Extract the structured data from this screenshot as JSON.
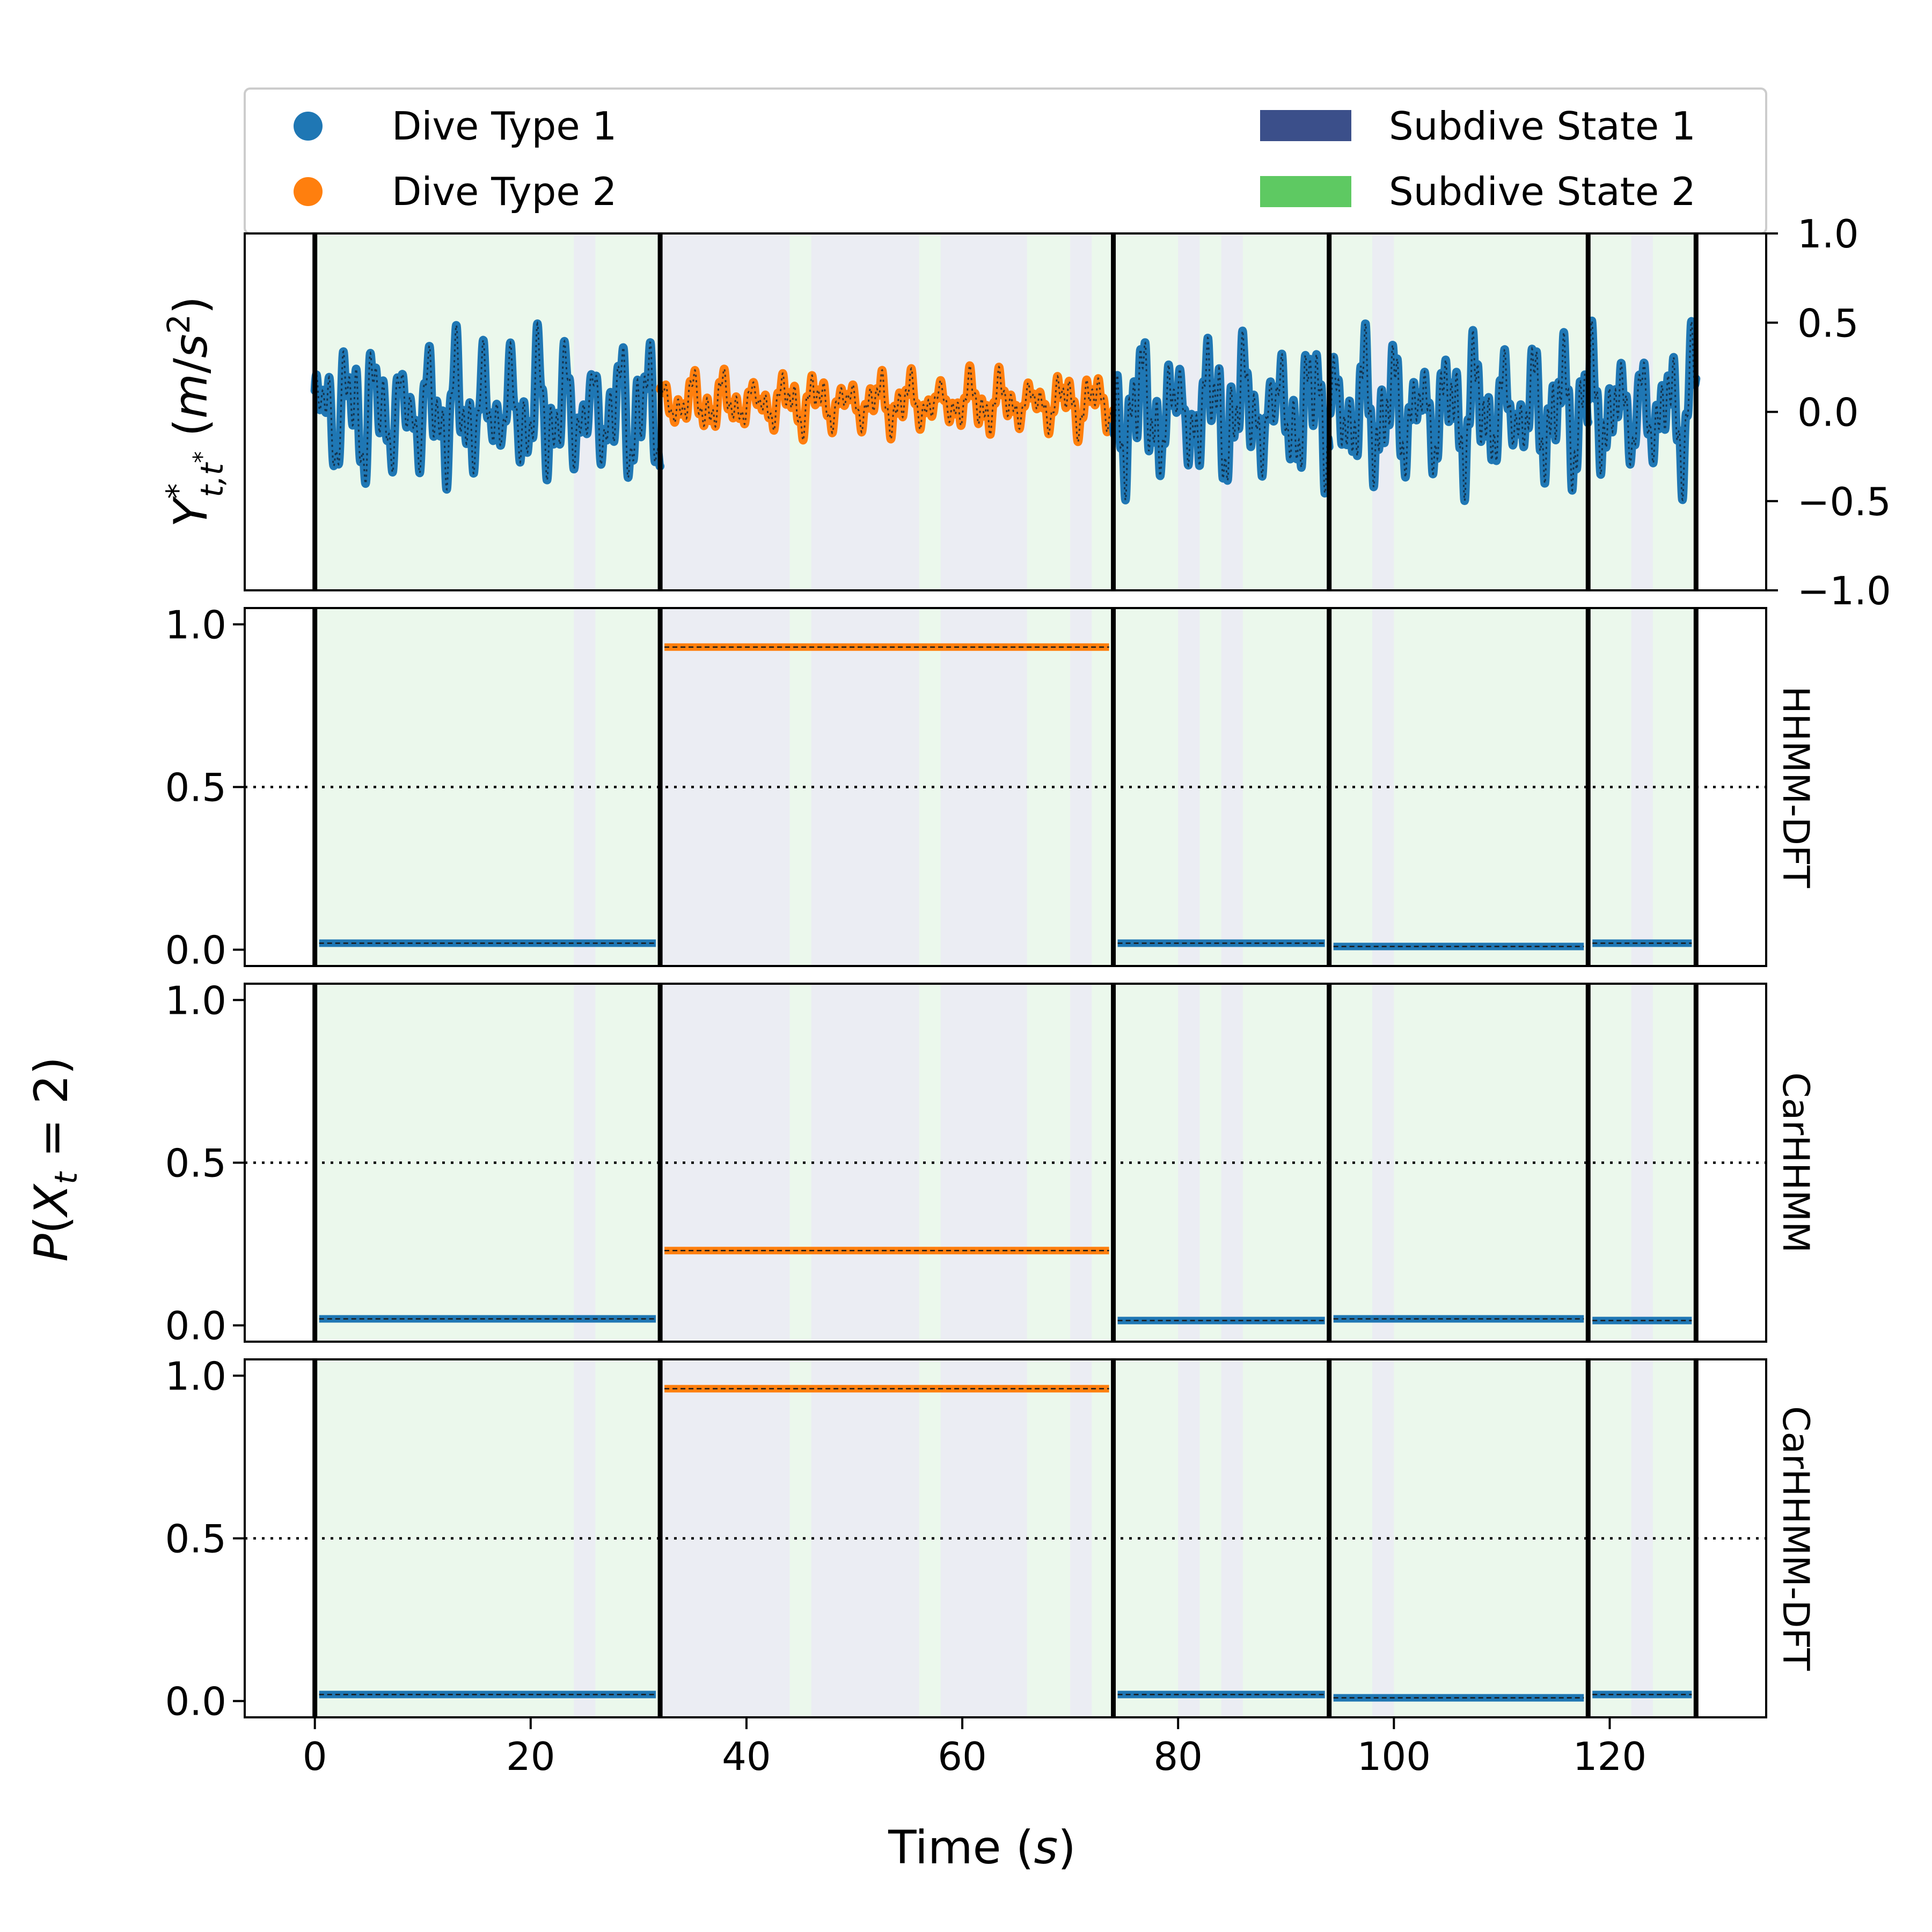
{
  "chart_data": {
    "type": "line",
    "legend": {
      "placement": "top",
      "entries": [
        {
          "label": "Dive Type 1",
          "color": "#1f77b4",
          "kind": "marker"
        },
        {
          "label": "Dive Type 2",
          "color": "#ff7f0e",
          "kind": "marker"
        },
        {
          "label": "Subdive State 1",
          "color": "#3b4f8a",
          "kind": "patch"
        },
        {
          "label": "Subdive State 2",
          "color": "#5ec962",
          "kind": "patch"
        }
      ]
    },
    "xlabel": "Time (s)",
    "xlim": [
      -6.5,
      134.5
    ],
    "xticks": [
      0,
      20,
      40,
      60,
      80,
      100,
      120
    ],
    "dive_boundaries": [
      0,
      32,
      74,
      94,
      118,
      128
    ],
    "dives": [
      {
        "start": 0,
        "end": 32,
        "type": 1
      },
      {
        "start": 32,
        "end": 74,
        "type": 2
      },
      {
        "start": 74,
        "end": 94,
        "type": 1
      },
      {
        "start": 94,
        "end": 118,
        "type": 1
      },
      {
        "start": 118,
        "end": 128,
        "type": 1
      }
    ],
    "subdive_segments": [
      {
        "start": 0,
        "end": 24,
        "state": 2
      },
      {
        "start": 24,
        "end": 26,
        "state": 1
      },
      {
        "start": 26,
        "end": 32,
        "state": 2
      },
      {
        "start": 32,
        "end": 44,
        "state": 1
      },
      {
        "start": 44,
        "end": 46,
        "state": 2
      },
      {
        "start": 46,
        "end": 56,
        "state": 1
      },
      {
        "start": 56,
        "end": 58,
        "state": 2
      },
      {
        "start": 58,
        "end": 66,
        "state": 1
      },
      {
        "start": 66,
        "end": 70,
        "state": 2
      },
      {
        "start": 70,
        "end": 72,
        "state": 1
      },
      {
        "start": 72,
        "end": 80,
        "state": 2
      },
      {
        "start": 80,
        "end": 82,
        "state": 1
      },
      {
        "start": 82,
        "end": 84,
        "state": 2
      },
      {
        "start": 84,
        "end": 86,
        "state": 1
      },
      {
        "start": 86,
        "end": 98,
        "state": 2
      },
      {
        "start": 98,
        "end": 100,
        "state": 1
      },
      {
        "start": 100,
        "end": 122,
        "state": 2
      },
      {
        "start": 122,
        "end": 124,
        "state": 1
      },
      {
        "start": 124,
        "end": 128,
        "state": 2
      }
    ],
    "panels": [
      {
        "id": "acceleration",
        "ylabel": "Y*_{t,t*} (m/s²)",
        "ylim": [
          -1.0,
          1.0
        ],
        "yticks": [
          1.0,
          0.5,
          0.0,
          -0.5,
          -1.0
        ],
        "ytick_labels": [
          "1.0",
          "0.5",
          "0.0",
          "−0.5",
          "−1.0"
        ],
        "yaxis_side": "right",
        "series": "acceleration_trace (approx., colored by dive type)"
      },
      {
        "id": "hhmm-dft",
        "side_label": "HHMM-DFT",
        "ylim": [
          -0.05,
          1.05
        ],
        "yticks": [
          0.0,
          0.5,
          1.0
        ],
        "ytick_labels": [
          "0.0",
          "0.5",
          "1.0"
        ],
        "reference_line": 0.5,
        "dive_probabilities": [
          0.02,
          0.93,
          0.02,
          0.01,
          0.02
        ]
      },
      {
        "id": "carhhmm",
        "side_label": "CarHHMM",
        "ylim": [
          -0.05,
          1.05
        ],
        "yticks": [
          0.0,
          0.5,
          1.0
        ],
        "ytick_labels": [
          "0.0",
          "0.5",
          "1.0"
        ],
        "reference_line": 0.5,
        "dive_probabilities": [
          0.02,
          0.23,
          0.015,
          0.02,
          0.015
        ]
      },
      {
        "id": "carhhmm-dft",
        "side_label": "CarHHMM-DFT",
        "ylim": [
          -0.05,
          1.05
        ],
        "yticks": [
          0.0,
          0.5,
          1.0
        ],
        "ytick_labels": [
          "0.0",
          "0.5",
          "1.0"
        ],
        "reference_line": 0.5,
        "dive_probabilities": [
          0.02,
          0.96,
          0.02,
          0.01,
          0.02
        ]
      }
    ],
    "shared_ylabel": "P(X_t = 2)"
  },
  "labels": {
    "x_title_prefix": "Time (",
    "x_title_unit": "s",
    "x_title_suffix": ")"
  }
}
